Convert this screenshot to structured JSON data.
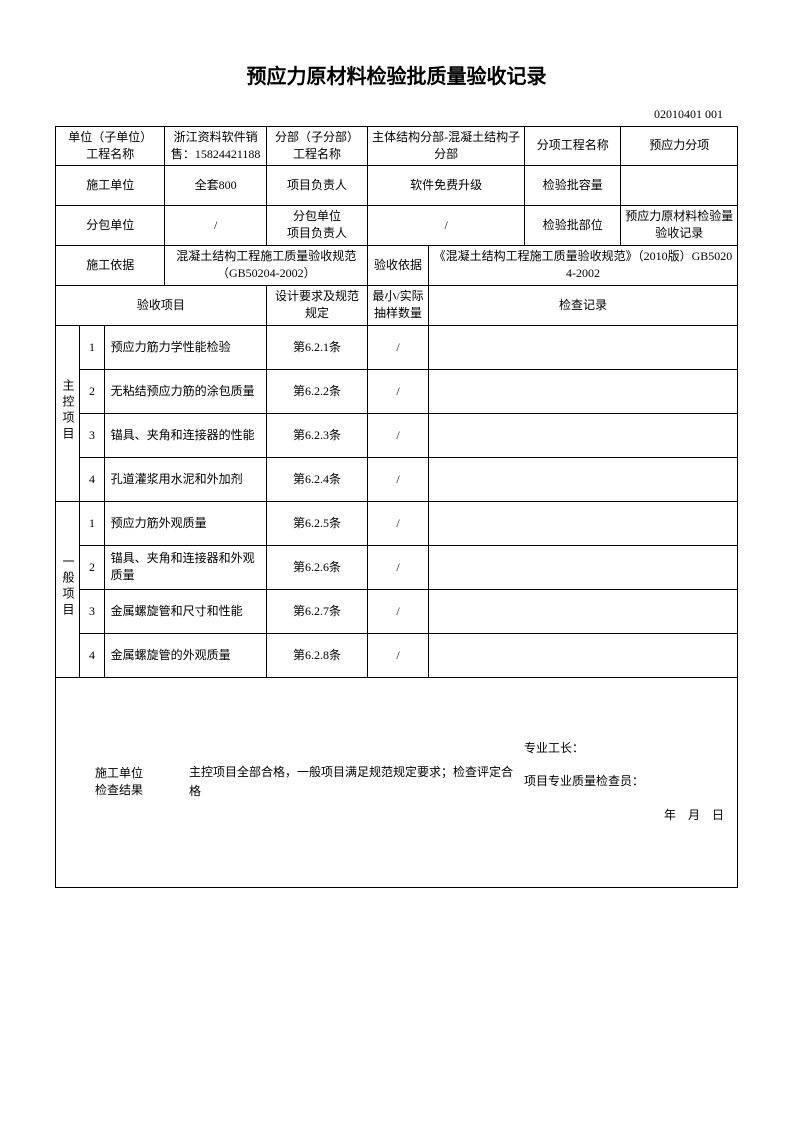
{
  "title": "预应力原材料检验批质量验收记录",
  "doc_code": "02010401 001",
  "header": {
    "r1": {
      "l1": "单位（子单位）\n工程名称",
      "v1": "浙江资料软件销售：15824421188",
      "l2": "分部（子分部）\n工程名称",
      "v2": "主体结构分部-混凝土结构子分部",
      "l3": "分项工程名称",
      "v3": "预应力分项"
    },
    "r2": {
      "l1": "施工单位",
      "v1": "全套800",
      "l2": "项目负责人",
      "v2": "软件免费升级",
      "l3": "检验批容量",
      "v3": ""
    },
    "r3": {
      "l1": "分包单位",
      "v1": "/",
      "l2": "分包单位\n项目负责人",
      "v2": "/",
      "l3": "检验批部位",
      "v3": "预应力原材料检验量验收记录"
    },
    "r4": {
      "l1": "施工依据",
      "v1": "混凝土结构工程施工质量验收规范（GB50204-2002）",
      "l2": "验收依据",
      "v2": "《混凝土结构工程施工质量验收规范》（2010版）GB50204-2002"
    }
  },
  "cols": {
    "c1": "验收项目",
    "c2": "设计要求及规范规定",
    "c3": "最小/实际抽样数量",
    "c4": "检查记录"
  },
  "groups": {
    "g1": "主控项目",
    "g2": "一般项目"
  },
  "items": {
    "m1": {
      "no": "1",
      "name": "预应力筋力学性能检验",
      "spec": "第6.2.1条",
      "qty": "/",
      "rec": ""
    },
    "m2": {
      "no": "2",
      "name": "无粘结预应力筋的涂包质量",
      "spec": "第6.2.2条",
      "qty": "/",
      "rec": ""
    },
    "m3": {
      "no": "3",
      "name": "锚具、夹角和连接器的性能",
      "spec": "第6.2.3条",
      "qty": "/",
      "rec": ""
    },
    "m4": {
      "no": "4",
      "name": "孔道灌浆用水泥和外加剂",
      "spec": "第6.2.4条",
      "qty": "/",
      "rec": ""
    },
    "g1": {
      "no": "1",
      "name": "预应力筋外观质量",
      "spec": "第6.2.5条",
      "qty": "/",
      "rec": ""
    },
    "g2": {
      "no": "2",
      "name": "锚具、夹角和连接器和外观质量",
      "spec": "第6.2.6条",
      "qty": "/",
      "rec": ""
    },
    "g3": {
      "no": "3",
      "name": "金属螺旋管和尺寸和性能",
      "spec": "第6.2.7条",
      "qty": "/",
      "rec": ""
    },
    "g4": {
      "no": "4",
      "name": "金属螺旋管的外观质量",
      "spec": "第6.2.8条",
      "qty": "/",
      "rec": ""
    }
  },
  "footer": {
    "label": "施工单位\n检查结果",
    "conclusion": "主控项目全部合格，一般项目满足规范规定要求；检查评定合格",
    "sig1": "专业工长：",
    "sig2": "项目专业质量检查员：",
    "date": "年　月　日"
  }
}
